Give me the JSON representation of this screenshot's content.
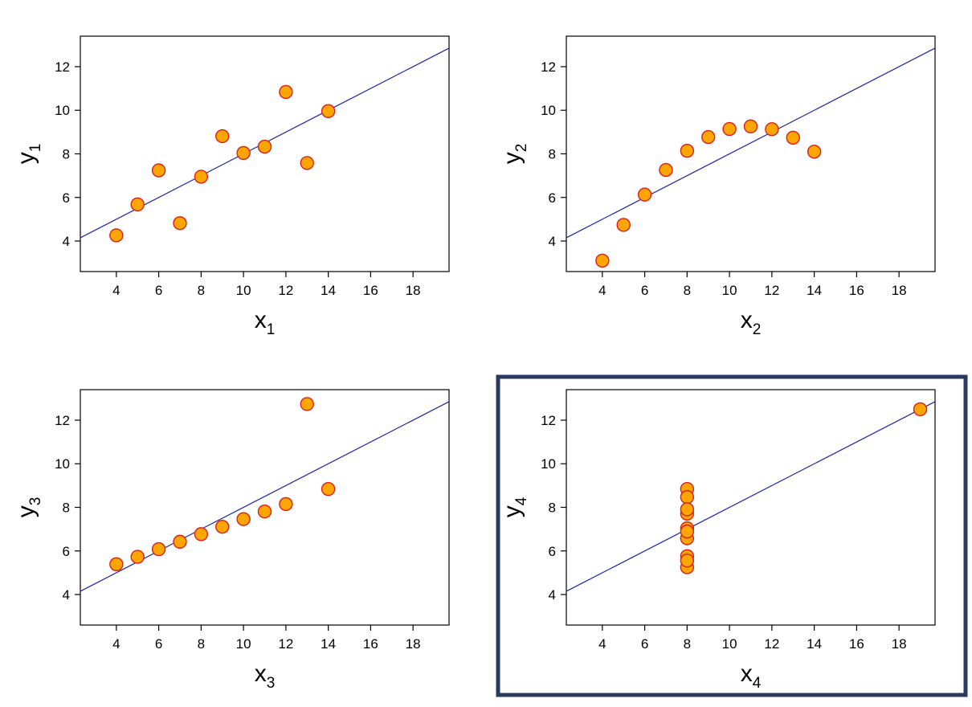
{
  "colors": {
    "point_fill": "#ffa500",
    "point_stroke": "#d42020",
    "line": "#2020a0",
    "highlight_border": "#2a3a5e"
  },
  "chart_data": [
    {
      "type": "scatter",
      "title": "",
      "xlabel": "x",
      "xlabel_sub": "1",
      "ylabel": "y",
      "ylabel_sub": "1",
      "xlim": [
        2.3,
        19.7
      ],
      "ylim": [
        2.6,
        13.4
      ],
      "xticks": [
        4,
        6,
        8,
        10,
        12,
        14,
        16,
        18
      ],
      "yticks": [
        4,
        6,
        8,
        10,
        12
      ],
      "fit_line": {
        "intercept": 3.0,
        "slope": 0.5
      },
      "highlighted": false,
      "x": [
        10,
        8,
        13,
        9,
        11,
        14,
        6,
        4,
        12,
        7,
        5
      ],
      "y": [
        8.04,
        6.95,
        7.58,
        8.81,
        8.33,
        9.96,
        7.24,
        4.26,
        10.84,
        4.82,
        5.68
      ]
    },
    {
      "type": "scatter",
      "title": "",
      "xlabel": "x",
      "xlabel_sub": "2",
      "ylabel": "y",
      "ylabel_sub": "2",
      "xlim": [
        2.3,
        19.7
      ],
      "ylim": [
        2.6,
        13.4
      ],
      "xticks": [
        4,
        6,
        8,
        10,
        12,
        14,
        16,
        18
      ],
      "yticks": [
        4,
        6,
        8,
        10,
        12
      ],
      "fit_line": {
        "intercept": 3.0,
        "slope": 0.5
      },
      "highlighted": false,
      "x": [
        10,
        8,
        13,
        9,
        11,
        14,
        6,
        4,
        12,
        7,
        5
      ],
      "y": [
        9.14,
        8.14,
        8.74,
        8.77,
        9.26,
        8.1,
        6.13,
        3.1,
        9.13,
        7.26,
        4.74
      ]
    },
    {
      "type": "scatter",
      "title": "",
      "xlabel": "x",
      "xlabel_sub": "3",
      "ylabel": "y",
      "ylabel_sub": "3",
      "xlim": [
        2.3,
        19.7
      ],
      "ylim": [
        2.6,
        13.4
      ],
      "xticks": [
        4,
        6,
        8,
        10,
        12,
        14,
        16,
        18
      ],
      "yticks": [
        4,
        6,
        8,
        10,
        12
      ],
      "fit_line": {
        "intercept": 3.0,
        "slope": 0.5
      },
      "highlighted": false,
      "x": [
        10,
        8,
        13,
        9,
        11,
        14,
        6,
        4,
        12,
        7,
        5
      ],
      "y": [
        7.46,
        6.77,
        12.74,
        7.11,
        7.81,
        8.84,
        6.08,
        5.39,
        8.15,
        6.42,
        5.73
      ]
    },
    {
      "type": "scatter",
      "title": "",
      "xlabel": "x",
      "xlabel_sub": "4",
      "ylabel": "y",
      "ylabel_sub": "4",
      "xlim": [
        2.3,
        19.7
      ],
      "ylim": [
        2.6,
        13.4
      ],
      "xticks": [
        4,
        6,
        8,
        10,
        12,
        14,
        16,
        18
      ],
      "yticks": [
        4,
        6,
        8,
        10,
        12
      ],
      "fit_line": {
        "intercept": 3.0,
        "slope": 0.5
      },
      "highlighted": true,
      "x": [
        8,
        8,
        8,
        8,
        8,
        8,
        8,
        19,
        8,
        8,
        8
      ],
      "y": [
        6.58,
        5.76,
        7.71,
        8.84,
        8.47,
        7.04,
        5.25,
        12.5,
        5.56,
        7.91,
        6.89
      ]
    }
  ]
}
